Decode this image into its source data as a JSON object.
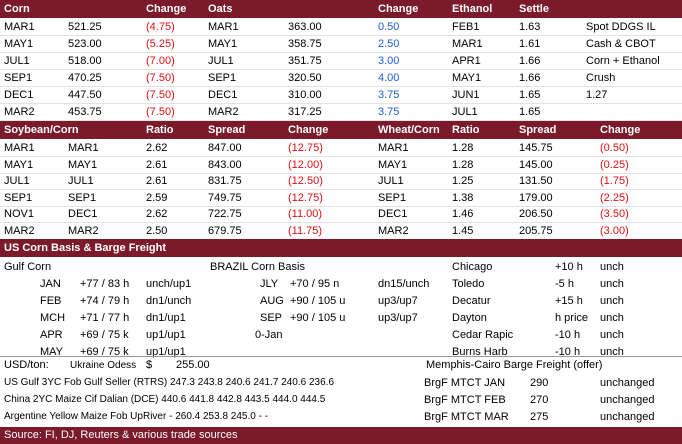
{
  "colors": {
    "header": "#7b1a2a",
    "neg": "#dd1111",
    "pos": "#1a5fd6"
  },
  "top_header": [
    "Corn",
    "Change",
    "Oats",
    "Change",
    "Ethanol",
    "Settle"
  ],
  "top_rows": [
    {
      "corn_m": "MAR1",
      "corn_v": "521.25",
      "corn_c": "(4.75)",
      "oats_m": "MAR1",
      "oats_v": "363.00",
      "oats_c": "0.50",
      "eth_m": "FEB1",
      "eth_v": "1.63",
      "note": "Spot DDGS IL"
    },
    {
      "corn_m": "MAY1",
      "corn_v": "523.00",
      "corn_c": "(5.25)",
      "oats_m": "MAY1",
      "oats_v": "358.75",
      "oats_c": "2.50",
      "eth_m": "MAR1",
      "eth_v": "1.61",
      "note": "Cash & CBOT"
    },
    {
      "corn_m": "JUL1",
      "corn_v": "518.00",
      "corn_c": "(7.00)",
      "oats_m": "JUL1",
      "oats_v": "351.75",
      "oats_c": "3.00",
      "eth_m": "APR1",
      "eth_v": "1.66",
      "note": "Corn + Ethanol"
    },
    {
      "corn_m": "SEP1",
      "corn_v": "470.25",
      "corn_c": "(7.50)",
      "oats_m": "SEP1",
      "oats_v": "320.50",
      "oats_c": "4.00",
      "eth_m": "MAY1",
      "eth_v": "1.66",
      "note": "Crush"
    },
    {
      "corn_m": "DEC1",
      "corn_v": "447.50",
      "corn_c": "(7.50)",
      "oats_m": "DEC1",
      "oats_v": "310.00",
      "oats_c": "3.75",
      "eth_m": "JUN1",
      "eth_v": "1.65",
      "note": "1.27"
    },
    {
      "corn_m": "MAR2",
      "corn_v": "453.75",
      "corn_c": "(7.50)",
      "oats_m": "MAR2",
      "oats_v": "317.25",
      "oats_c": "3.75",
      "eth_m": "JUL1",
      "eth_v": "1.65",
      "note": ""
    }
  ],
  "mid_header": [
    "Soybean/Corn",
    "Ratio",
    "Spread",
    "Change",
    "Wheat/Corn",
    "Ratio",
    "Spread",
    "Change"
  ],
  "mid_rows": [
    {
      "a": "MAR1",
      "b": "MAR1",
      "r": "2.62",
      "s": "847.00",
      "c": "(12.75)",
      "wa": "MAR1",
      "wr": "1.28",
      "ws": "145.75",
      "wc": "(0.50)"
    },
    {
      "a": "MAY1",
      "b": "MAY1",
      "r": "2.61",
      "s": "843.00",
      "c": "(12.00)",
      "wa": "MAY1",
      "wr": "1.28",
      "ws": "145.00",
      "wc": "(0.25)"
    },
    {
      "a": "JUL1",
      "b": "JUL1",
      "r": "2.61",
      "s": "831.75",
      "c": "(12.50)",
      "wa": "JUL1",
      "wr": "1.25",
      "ws": "131.50",
      "wc": "(1.75)"
    },
    {
      "a": "SEP1",
      "b": "SEP1",
      "r": "2.59",
      "s": "749.75",
      "c": "(12.75)",
      "wa": "SEP1",
      "wr": "1.38",
      "ws": "179.00",
      "wc": "(2.25)"
    },
    {
      "a": "NOV1",
      "b": "DEC1",
      "r": "2.62",
      "s": "722.75",
      "c": "(11.00)",
      "wa": "DEC1",
      "wr": "1.46",
      "ws": "206.50",
      "wc": "(3.50)"
    },
    {
      "a": "MAR2",
      "b": "MAR2",
      "r": "2.50",
      "s": "679.75",
      "c": "(11.75)",
      "wa": "MAR2",
      "wr": "1.45",
      "ws": "205.75",
      "wc": "(3.00)"
    }
  ],
  "basis_header": "US Corn Basis & Barge Freight",
  "gulf_title": "Gulf Corn",
  "brazil_title": "BRAZIL Corn Basis",
  "gulf_rows": [
    {
      "m": "JAN",
      "v": "+77 / 83 h",
      "c": "unch/up1"
    },
    {
      "m": "FEB",
      "v": "+74 / 79 h",
      "c": "dn1/unch"
    },
    {
      "m": "MCH",
      "v": "+71 / 77 h",
      "c": "dn1/up1"
    },
    {
      "m": "APR",
      "v": "+69 / 75 k",
      "c": "up1/up1"
    },
    {
      "m": "MAY",
      "v": "+69 / 75 k",
      "c": "up1/up1"
    }
  ],
  "brazil_rows": [
    {
      "m": "JLY",
      "v": "+70 / 95 n",
      "c": "dn15/unch"
    },
    {
      "m": "AUG",
      "v": "+90 / 105 u",
      "c": "up3/up7"
    },
    {
      "m": "SEP",
      "v": "+90 / 105 u",
      "c": "up3/up7"
    },
    {
      "m": "",
      "v": "0-Jan",
      "c": ""
    }
  ],
  "rail_rows": [
    {
      "n": "Chicago",
      "v": "+10 h",
      "c": "unch"
    },
    {
      "n": "Toledo",
      "v": "-5 h",
      "c": "unch"
    },
    {
      "n": "Decatur",
      "v": "+15 h",
      "c": "unch"
    },
    {
      "n": "Dayton",
      "v": "h price",
      "c": "unch"
    },
    {
      "n": "Cedar Rapic",
      "v": "-10 h",
      "c": "unch"
    },
    {
      "n": "Burns Harb",
      "v": "-10 h",
      "c": "unch"
    }
  ],
  "usd": {
    "label": "USD/ton:",
    "ukr": "Ukraine Odess",
    "sym": "$",
    "val": "255.00"
  },
  "barge_title": "Memphis-Cairo Barge Freight (offer)",
  "fob_rows": [
    {
      "t": "US Gulf  3YC Fob Gulf Seller (RTRS) 247.3  243.8  240.6  241.7  240.6  236.6"
    },
    {
      "t": "China   2YC Maize Cif Dalian (DCE) 440.6  441.8  442.8  443.5  444.0  444.5"
    },
    {
      "t": "Argentine  Yellow Maize Fob UpRiver   -   260.4  253.8  245.0   -     -"
    }
  ],
  "barge_rows": [
    {
      "n": "BrgF MTCT JAN",
      "v": "290",
      "c": "unchanged"
    },
    {
      "n": "BrgF MTCT FEB",
      "v": "270",
      "c": "unchanged"
    },
    {
      "n": "BrgF MTCT MAR",
      "v": "275",
      "c": "unchanged"
    }
  ],
  "source": "Source: FI, DJ, Reuters & various trade sources"
}
